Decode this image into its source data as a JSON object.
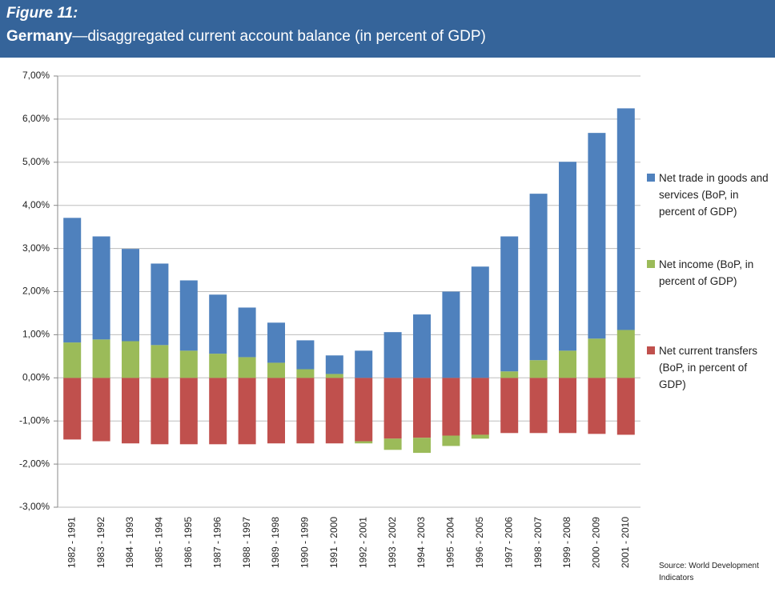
{
  "chart_data": {
    "type": "stacked_bar",
    "figure_label": "Figure 11:",
    "title_bold": "Germany",
    "title": "—disaggregated current account balance (in percent of GDP)",
    "source": "Source: World Development Indicators",
    "categories": [
      "1982 - 1991",
      "1983 - 1992",
      "1984 - 1993",
      "1985 - 1994",
      "1986 - 1995",
      "1987 - 1996",
      "1988 - 1997",
      "1989 - 1998",
      "1990 - 1999",
      "1991 - 2000",
      "1992 - 2001",
      "1993 - 2002",
      "1994 - 2003",
      "1995 - 2004",
      "1996 - 2005",
      "1997 - 2006",
      "1998 - 2007",
      "1999 - 2008",
      "2000 - 2009",
      "2001 - 2010"
    ],
    "series": [
      {
        "name": "Net trade in goods and services (BoP, in percent of GDP)",
        "color": "#4f81bd",
        "values": [
          2.89,
          2.39,
          2.14,
          1.89,
          1.63,
          1.37,
          1.15,
          0.93,
          0.67,
          0.43,
          0.63,
          1.06,
          1.47,
          2.0,
          2.58,
          3.13,
          3.86,
          4.38,
          4.77,
          5.14
        ]
      },
      {
        "name": "Net income (BoP, in percent of GDP)",
        "color": "#9bbb59",
        "values": [
          0.82,
          0.89,
          0.85,
          0.76,
          0.63,
          0.56,
          0.48,
          0.35,
          0.2,
          0.09,
          -0.05,
          -0.26,
          -0.35,
          -0.24,
          -0.09,
          0.15,
          0.41,
          0.63,
          0.91,
          1.11
        ]
      },
      {
        "name": "Net current transfers (BoP, in percent of GDP)",
        "color": "#c0504d",
        "values": [
          -1.43,
          -1.47,
          -1.52,
          -1.54,
          -1.54,
          -1.54,
          -1.54,
          -1.52,
          -1.52,
          -1.52,
          -1.47,
          -1.41,
          -1.39,
          -1.34,
          -1.32,
          -1.28,
          -1.28,
          -1.28,
          -1.3,
          -1.32
        ]
      }
    ],
    "ylim": [
      -3,
      7
    ],
    "yticks": [
      {
        "value": 7,
        "label": "7,00%"
      },
      {
        "value": 6,
        "label": "6,00%"
      },
      {
        "value": 5,
        "label": "5,00%"
      },
      {
        "value": 4,
        "label": "4,00%"
      },
      {
        "value": 3,
        "label": "3,00%"
      },
      {
        "value": 2,
        "label": "2,00%"
      },
      {
        "value": 1,
        "label": "1,00%"
      },
      {
        "value": 0,
        "label": "0,00%"
      },
      {
        "value": -1,
        "label": "-1,00%"
      },
      {
        "value": -2,
        "label": "-2,00%"
      },
      {
        "value": -3,
        "label": "-3,00%"
      }
    ],
    "grid": true
  }
}
